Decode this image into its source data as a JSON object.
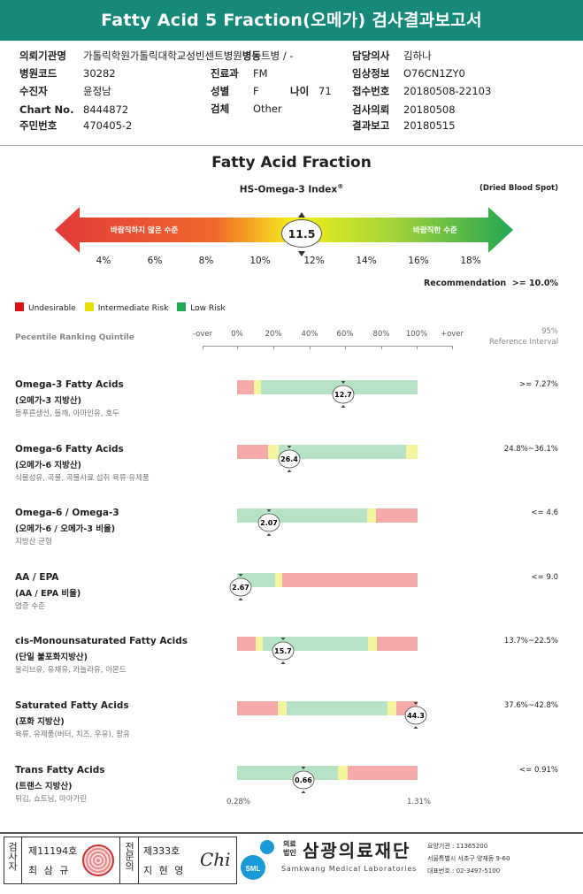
{
  "report_title": "Fatty Acid 5 Fraction(오메가) 검사결과보고서",
  "patient": {
    "hospital_label": "의뢰기관명",
    "hospital": "가톨릭학원가톨릭대학교성빈센트병원",
    "ward_label": "병동",
    "ward": "트병 / -",
    "code_label": "병원코드",
    "code": "30282",
    "dept_label": "진료과",
    "dept": "FM",
    "name_label": "수진자",
    "name": "윤정남",
    "sex_label": "성별",
    "sex": "F",
    "age_label": "나이",
    "age": "71",
    "chart_label": "Chart No.",
    "chart": "8444872",
    "specimen_label": "검체",
    "specimen": "Other",
    "id_label": "주민번호",
    "id": "470405-2",
    "doctor_label": "담당의사",
    "doctor": "김하나",
    "clinical_label": "임상정보",
    "clinical": "O76CN1ZY0",
    "receipt_label": "접수번호",
    "receipt": "20180508-22103",
    "requested_label": "검사의뢰",
    "requested": "20180508",
    "reported_label": "결과보고",
    "reported": "20180515"
  },
  "fraction": {
    "title": "Fatty Acid Fraction",
    "index_title": "HS-Omega-3 Index",
    "index_mark": "®",
    "sample_note": "(Dried Blood Spot)",
    "left_label": "바람직하지 않은 수준",
    "right_label": "바람직한 수준",
    "index_value": "11.5",
    "ticks": [
      "4%",
      "6%",
      "8%",
      "10%",
      "12%",
      "14%",
      "16%",
      "18%"
    ],
    "recommendation_label": "Recommendation",
    "recommendation_value": ">= 10.0%"
  },
  "legend": {
    "undesirable": "Undesirable",
    "intermediate": "Intermediate Risk",
    "low": "Low Risk",
    "colors": {
      "undesirable": "#dd1111",
      "intermediate": "#e8e000",
      "low": "#22aa55"
    }
  },
  "scale": {
    "title": "Pecentile Ranking Quintile",
    "labels": [
      "-over",
      "0%",
      "20%",
      "40%",
      "60%",
      "80%",
      "100%",
      "+over"
    ],
    "ref_title_1": "95%",
    "ref_title_2": "Reference Interval"
  },
  "rows": [
    {
      "title": "Omega-3 Fatty Acids",
      "sub": "(오메가-3 지방산)",
      "food": "등푸른생선, 들깨, 아마인유, 호두",
      "value": "12.7",
      "ref": ">= 7.27%"
    },
    {
      "title": "Omega-6 Fatty Acids",
      "sub": "(오메가-6 지방산)",
      "food": "식물성유, 곡물, 곡물사료 섭취 육류·유제품",
      "value": "26.4",
      "ref": "24.8%~36.1%"
    },
    {
      "title": "Omega-6 / Omega-3",
      "sub": "(오메가-6 / 오메가-3 비율)",
      "food": "지방산 균형",
      "value": "2.07",
      "ref": "<= 4.6"
    },
    {
      "title": "AA / EPA",
      "sub": "(AA / EPA 비율)",
      "food": "염증 수준",
      "value": "2.67",
      "ref": "<= 9.0"
    },
    {
      "title": "cis-Monounsaturated Fatty Acids",
      "sub": "(단일 불포화지방산)",
      "food": "올리브유, 유채유, 카놀라유, 아몬드",
      "value": "15.7",
      "ref": "13.7%~22.5%"
    },
    {
      "title": "Saturated Fatty Acids",
      "sub": "(포화 지방산)",
      "food": "육류, 유제품(버터, 치즈, 우유), 팜유",
      "value": "44.3",
      "ref": "37.6%~42.8%"
    },
    {
      "title": "Trans Fatty Acids",
      "sub": "(트랜스 지방산)",
      "food": "튀김, 쇼트닝, 마아가린",
      "value": "0.66",
      "ref": "<= 0.91%"
    }
  ],
  "trans_range": {
    "min": "0.28%",
    "max": "1.31%"
  },
  "signature": {
    "inspector_v": "검사자",
    "inspector_no": "제11194호",
    "inspector_name": "최 삼 규",
    "specialist_v": "전문의",
    "specialist_no": "제333호",
    "specialist_name": "지 현 영",
    "sign": "Chi"
  },
  "org": {
    "prefix": "의료법인",
    "name": "삼광의료재단",
    "logo": "SML",
    "en": "Samkwang Medical Laboratories",
    "line1": "요양기관 : 11365200",
    "line2": "서울특별시 서초구 양재동 9-60",
    "line3": "대표번호 : 02-3497-5100"
  }
}
